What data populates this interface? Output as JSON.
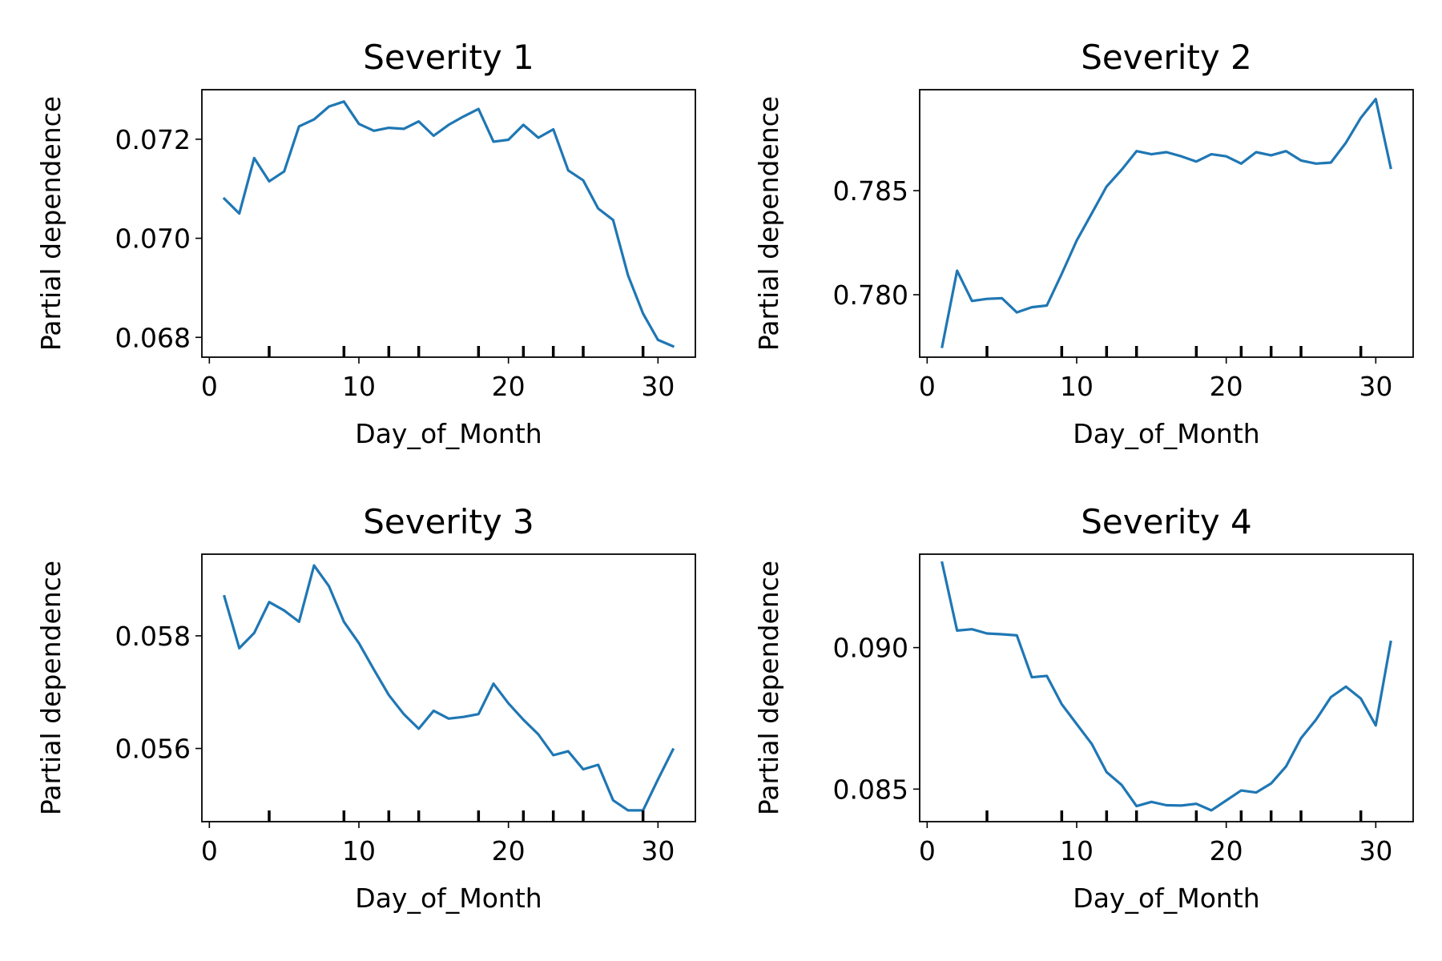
{
  "chart_data": [
    {
      "type": "line",
      "title": "Severity 1",
      "xlabel": "Day_of_Month",
      "ylabel": "Partial dependence",
      "xlim": [
        -0.5,
        32.5
      ],
      "ylim": [
        0.0676,
        0.073
      ],
      "xticks": [
        0,
        10,
        20,
        30
      ],
      "xtick_labels": [
        "0",
        "10",
        "20",
        "30"
      ],
      "yticks": [
        0.068,
        0.07,
        0.072
      ],
      "ytick_labels": [
        "0.068",
        "0.070",
        "0.072"
      ],
      "rug_ticks": [
        4,
        9,
        12,
        14,
        18,
        21,
        23,
        25,
        29
      ],
      "grid": false,
      "series": [
        {
          "color": "#1f77b4",
          "x": [
            1,
            2,
            3,
            4,
            5,
            6,
            7,
            8,
            9,
            10,
            11,
            12,
            13,
            14,
            15,
            16,
            17,
            18,
            19,
            20,
            21,
            22,
            23,
            24,
            25,
            26,
            27,
            28,
            29,
            30,
            31
          ],
          "values": [
            0.0708,
            0.0705,
            0.07162,
            0.07115,
            0.07135,
            0.07226,
            0.0724,
            0.07266,
            0.07276,
            0.07231,
            0.07217,
            0.07223,
            0.07221,
            0.07236,
            0.07207,
            0.07229,
            0.07246,
            0.07261,
            0.07195,
            0.07199,
            0.07229,
            0.07203,
            0.0722,
            0.07137,
            0.07117,
            0.0706,
            0.07037,
            0.06925,
            0.06848,
            0.06795,
            0.06782
          ]
        }
      ]
    },
    {
      "type": "line",
      "title": "Severity 2",
      "xlabel": "Day_of_Month",
      "ylabel": "Partial dependence",
      "xlim": [
        -0.5,
        32.5
      ],
      "ylim": [
        0.777,
        0.78985
      ],
      "xticks": [
        0,
        10,
        20,
        30
      ],
      "xtick_labels": [
        "0",
        "10",
        "20",
        "30"
      ],
      "yticks": [
        0.78,
        0.785
      ],
      "ytick_labels": [
        "0.780",
        "0.785"
      ],
      "rug_ticks": [
        4,
        9,
        12,
        14,
        18,
        21,
        23,
        25,
        29
      ],
      "grid": false,
      "series": [
        {
          "color": "#1f77b4",
          "x": [
            1,
            2,
            3,
            4,
            5,
            6,
            7,
            8,
            9,
            10,
            11,
            12,
            13,
            14,
            15,
            16,
            17,
            18,
            19,
            20,
            21,
            22,
            23,
            24,
            25,
            26,
            27,
            28,
            29,
            30,
            31
          ],
          "values": [
            0.7775,
            0.78115,
            0.7797,
            0.7798,
            0.77983,
            0.77915,
            0.7794,
            0.77948,
            0.781,
            0.7826,
            0.7839,
            0.7852,
            0.786,
            0.7869,
            0.78675,
            0.78685,
            0.78665,
            0.7864,
            0.78675,
            0.78665,
            0.7863,
            0.78685,
            0.7867,
            0.7869,
            0.78645,
            0.7863,
            0.78635,
            0.7873,
            0.7885,
            0.7894,
            0.7861
          ]
        }
      ]
    },
    {
      "type": "line",
      "title": "Severity 3",
      "xlabel": "Day_of_Month",
      "ylabel": "Partial dependence",
      "xlim": [
        -0.5,
        32.5
      ],
      "ylim": [
        0.0547,
        0.05945
      ],
      "xticks": [
        0,
        10,
        20,
        30
      ],
      "xtick_labels": [
        "0",
        "10",
        "20",
        "30"
      ],
      "yticks": [
        0.056,
        0.058
      ],
      "ytick_labels": [
        "0.056",
        "0.058"
      ],
      "rug_ticks": [
        4,
        9,
        12,
        14,
        18,
        21,
        23,
        25,
        29
      ],
      "grid": false,
      "series": [
        {
          "color": "#1f77b4",
          "x": [
            1,
            2,
            3,
            4,
            5,
            6,
            7,
            8,
            9,
            10,
            11,
            12,
            13,
            14,
            15,
            16,
            17,
            18,
            19,
            20,
            21,
            22,
            23,
            24,
            25,
            26,
            27,
            28,
            29,
            30,
            31
          ],
          "values": [
            0.0587,
            0.05778,
            0.05805,
            0.0586,
            0.05845,
            0.05825,
            0.05925,
            0.05888,
            0.05825,
            0.05787,
            0.0574,
            0.05695,
            0.05661,
            0.05635,
            0.05667,
            0.05653,
            0.05656,
            0.05661,
            0.05715,
            0.0568,
            0.05651,
            0.05625,
            0.05588,
            0.05595,
            0.05563,
            0.05571,
            0.05508,
            0.0549,
            0.0549,
            0.05545,
            0.05598
          ]
        }
      ]
    },
    {
      "type": "line",
      "title": "Severity 4",
      "xlabel": "Day_of_Month",
      "ylabel": "Partial dependence",
      "xlim": [
        -0.5,
        32.5
      ],
      "ylim": [
        0.08385,
        0.0933
      ],
      "xticks": [
        0,
        10,
        20,
        30
      ],
      "xtick_labels": [
        "0",
        "10",
        "20",
        "30"
      ],
      "yticks": [
        0.085,
        0.09
      ],
      "ytick_labels": [
        "0.085",
        "0.090"
      ],
      "rug_ticks": [
        4,
        9,
        12,
        14,
        18,
        21,
        23,
        25,
        29
      ],
      "grid": false,
      "series": [
        {
          "color": "#1f77b4",
          "x": [
            1,
            2,
            3,
            4,
            5,
            6,
            7,
            8,
            9,
            10,
            11,
            12,
            13,
            14,
            15,
            16,
            17,
            18,
            19,
            20,
            21,
            22,
            23,
            24,
            25,
            26,
            27,
            28,
            29,
            30,
            31
          ],
          "values": [
            0.093,
            0.0906,
            0.09065,
            0.0905,
            0.09047,
            0.09043,
            0.08895,
            0.089,
            0.088,
            0.0873,
            0.0866,
            0.0856,
            0.08515,
            0.0844,
            0.08455,
            0.08443,
            0.08442,
            0.08448,
            0.08425,
            0.0846,
            0.08495,
            0.08488,
            0.0852,
            0.0858,
            0.0868,
            0.08745,
            0.08825,
            0.08862,
            0.0882,
            0.08725,
            0.0902
          ]
        }
      ]
    }
  ]
}
